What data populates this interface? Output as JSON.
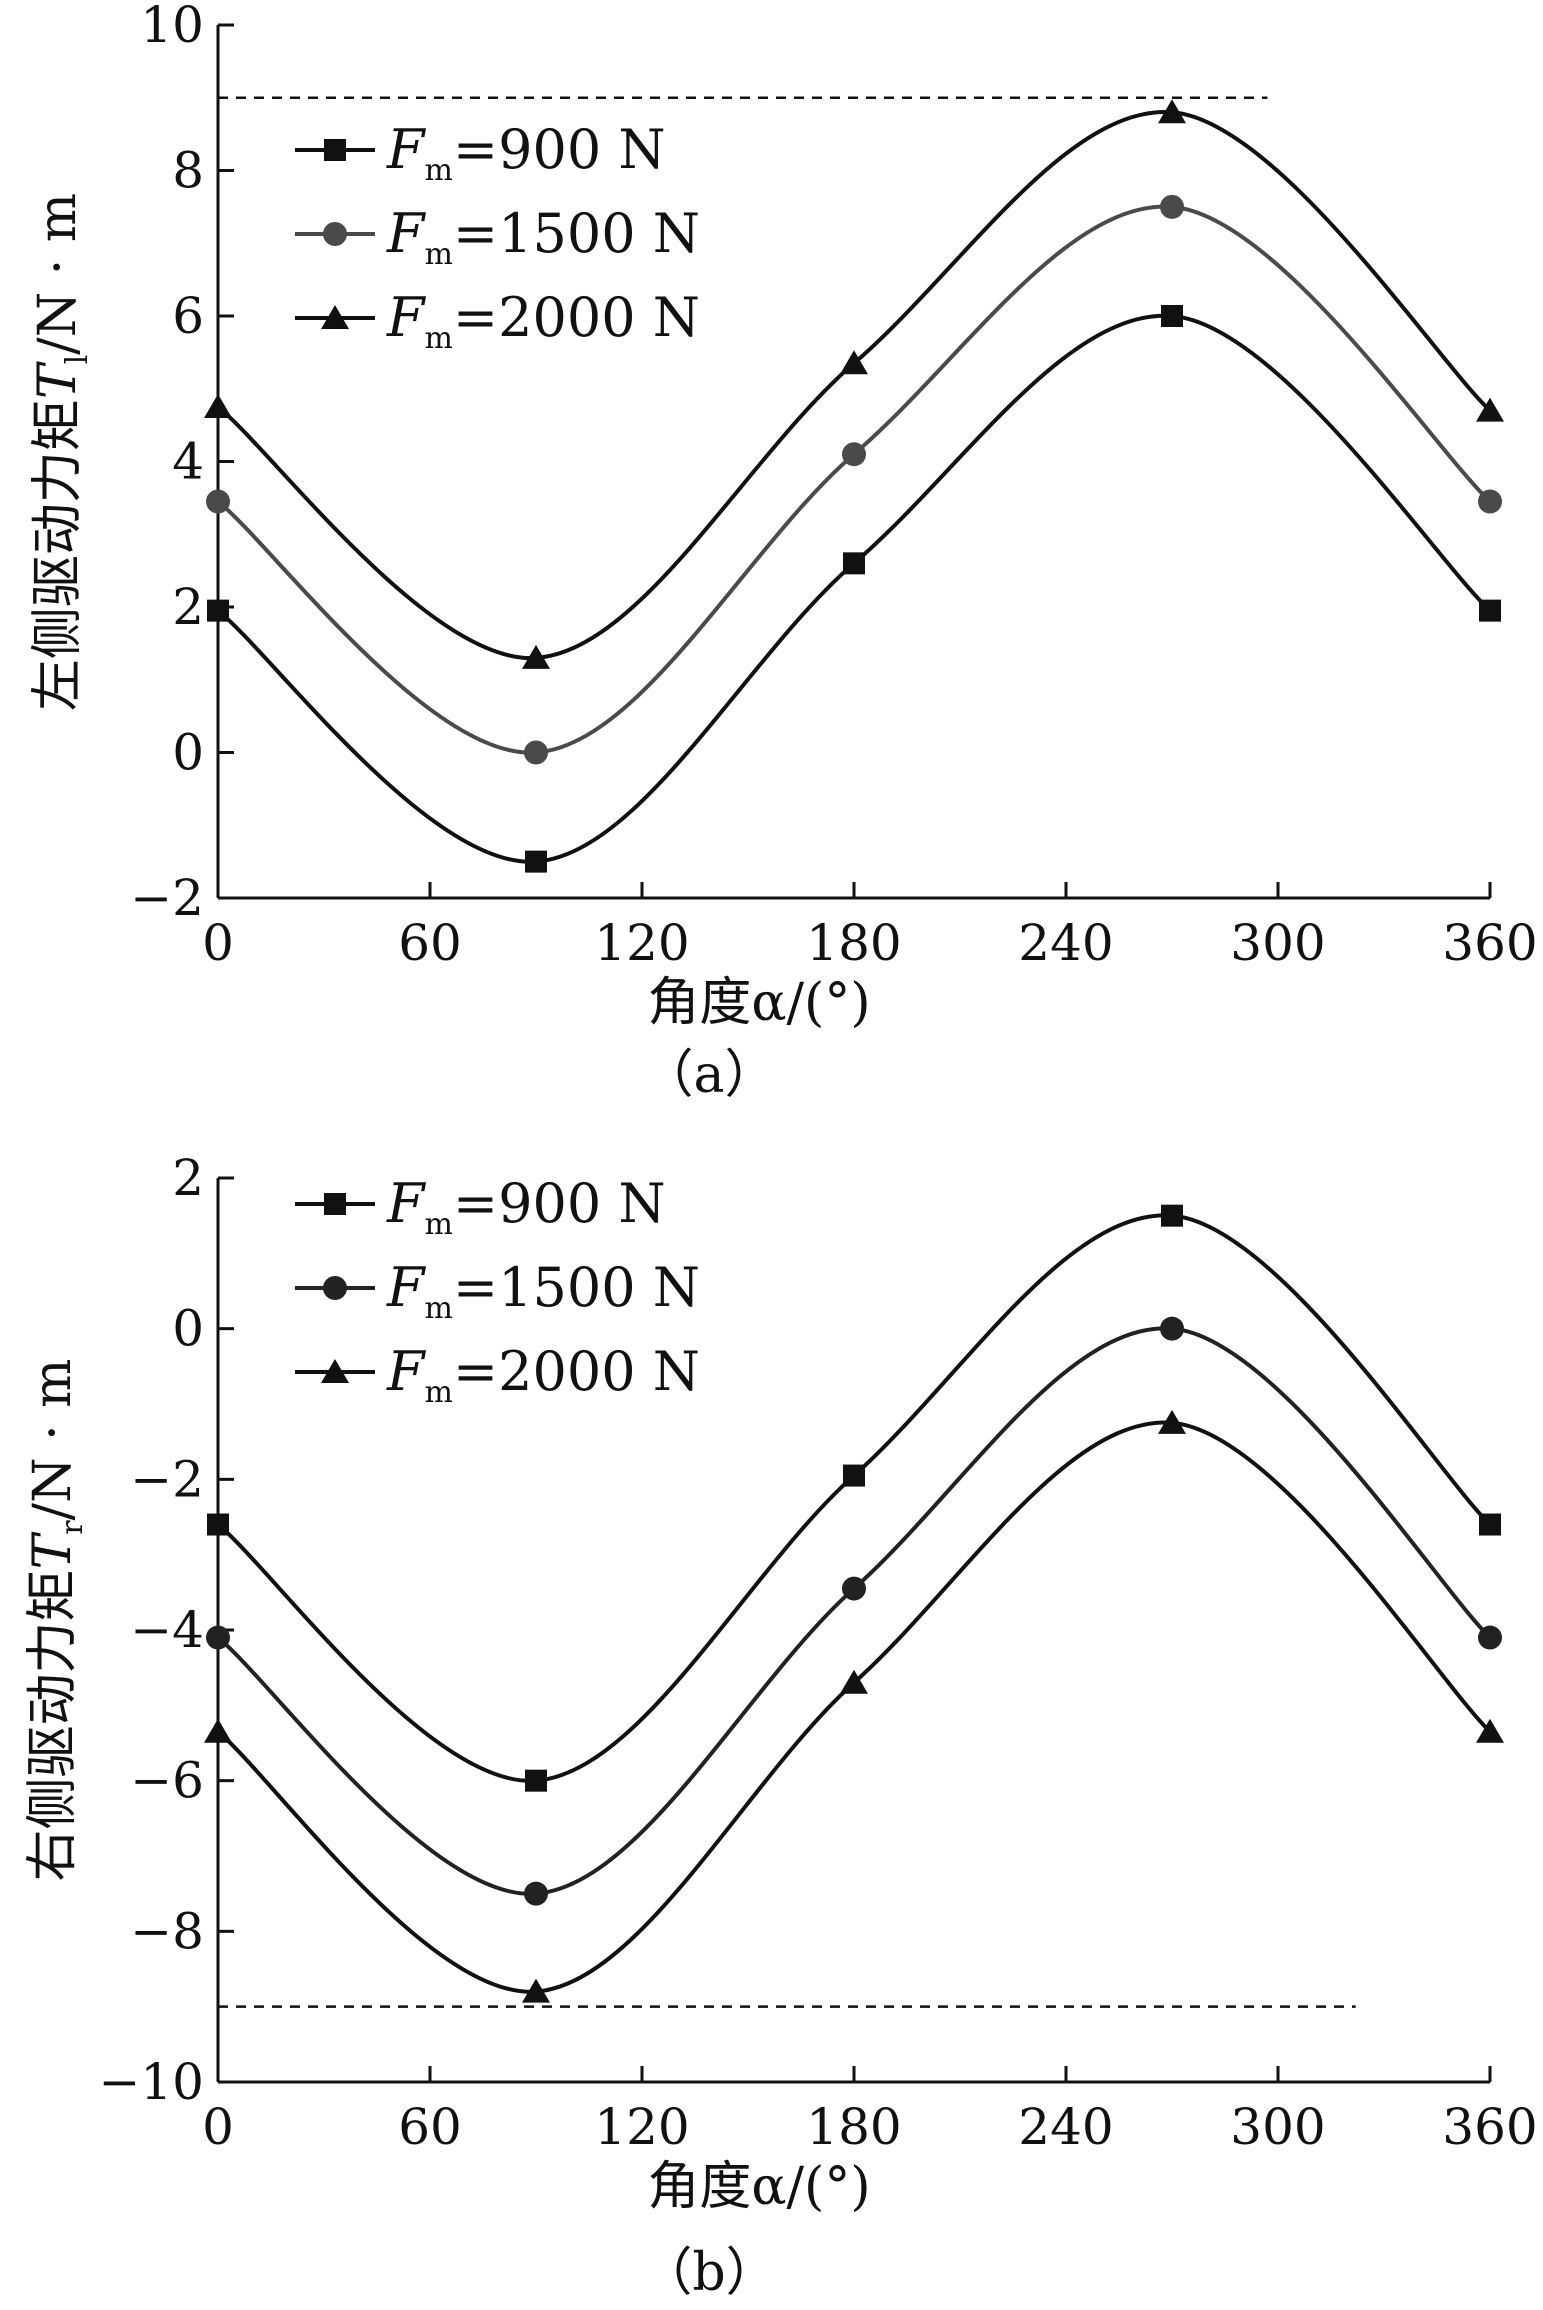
{
  "chart_data": [
    {
      "id": "a",
      "type": "line",
      "panel_label": "（a）",
      "xlabel": "角度α/(°)",
      "ylabel": "左侧驱动力矩T_l/N·m",
      "ylabel_main": "左侧驱动力矩",
      "ylabel_symbol": "T",
      "ylabel_sub": "l",
      "ylabel_unit": "/N · m",
      "x_ticks": [
        "0",
        "60",
        "120",
        "180",
        "240",
        "300",
        "360"
      ],
      "y_ticks": [
        "−2",
        "0",
        "2",
        "4",
        "6",
        "8",
        "10"
      ],
      "xlim": [
        0,
        360
      ],
      "ylim": [
        -2,
        10
      ],
      "reference_line": {
        "y": 9,
        "x_end": 297
      },
      "legend_placement": "top-left",
      "x": [
        0,
        90,
        180,
        270,
        360
      ],
      "series": [
        {
          "name": "F_m=900 N",
          "legend_symbol": "F",
          "legend_sub": "m",
          "legend_value": "=900 N",
          "marker": "square",
          "color": "#111111",
          "values": [
            1.95,
            -1.5,
            2.6,
            6.0,
            1.95
          ]
        },
        {
          "name": "F_m=1500 N",
          "legend_symbol": "F",
          "legend_sub": "m",
          "legend_value": "=1500 N",
          "marker": "circle",
          "color": "#4a4a4a",
          "values": [
            3.45,
            0.0,
            4.1,
            7.5,
            3.45
          ]
        },
        {
          "name": "F_m=2000 N",
          "legend_symbol": "F",
          "legend_sub": "m",
          "legend_value": "=2000 N",
          "marker": "triangle",
          "color": "#111111",
          "values": [
            4.75,
            1.3,
            5.35,
            8.8,
            4.7
          ]
        }
      ]
    },
    {
      "id": "b",
      "type": "line",
      "panel_label": "（b）",
      "xlabel": "角度α/(°)",
      "ylabel": "右侧驱动力矩T_r/N·m",
      "ylabel_main": "右侧驱动力矩",
      "ylabel_symbol": "T",
      "ylabel_sub": "r",
      "ylabel_unit": "/N · m",
      "x_ticks": [
        "0",
        "60",
        "120",
        "180",
        "240",
        "300",
        "360"
      ],
      "y_ticks": [
        "−10",
        "−8",
        "−6",
        "−4",
        "−2",
        "0",
        "2"
      ],
      "xlim": [
        0,
        360
      ],
      "ylim": [
        -10,
        2
      ],
      "reference_line": {
        "y": -9,
        "x_end": 322
      },
      "legend_placement": "top-left",
      "x": [
        0,
        90,
        180,
        270,
        360
      ],
      "series": [
        {
          "name": "F_m=900 N",
          "legend_symbol": "F",
          "legend_sub": "m",
          "legend_value": "=900 N",
          "marker": "square",
          "color": "#111111",
          "values": [
            -2.6,
            -6.0,
            -1.95,
            1.5,
            -2.6
          ]
        },
        {
          "name": "F_m=1500 N",
          "legend_symbol": "F",
          "legend_sub": "m",
          "legend_value": "=1500 N",
          "marker": "circle",
          "color": "#222222",
          "values": [
            -4.1,
            -7.5,
            -3.45,
            0.0,
            -4.1
          ]
        },
        {
          "name": "F_m=2000 N",
          "legend_symbol": "F",
          "legend_sub": "m",
          "legend_value": "=2000 N",
          "marker": "triangle",
          "color": "#111111",
          "values": [
            -5.35,
            -8.8,
            -4.7,
            -1.25,
            -5.35
          ]
        }
      ]
    }
  ]
}
